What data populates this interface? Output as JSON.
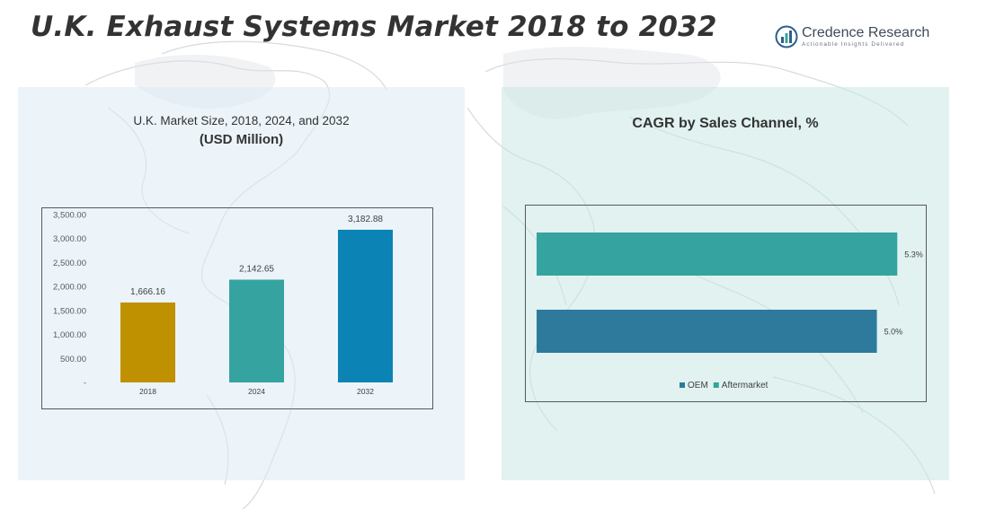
{
  "page": {
    "title": "U.K. Exhaust Systems Market 2018 to 2032"
  },
  "brand": {
    "name": "Credence Research",
    "tagline": "Actionable Insights Delivered"
  },
  "left_panel": {
    "title_line1": "U.K. Market Size, 2018, 2024, and 2032",
    "title_line2": "(USD Million)"
  },
  "right_panel": {
    "title": "CAGR by Sales Channel, %"
  },
  "colors": {
    "bar_2018": "#bf9000",
    "bar_2024": "#35a39f",
    "bar_2032": "#0b83b4",
    "oem": "#2e7a9c",
    "aftermarket": "#35a39f"
  },
  "chart_data": [
    {
      "type": "bar",
      "categories": [
        "2018",
        "2024",
        "2032"
      ],
      "values": [
        1666.16,
        2142.65,
        3182.88
      ],
      "value_labels": [
        "1,666.16",
        "2,142.65",
        "3,182.88"
      ],
      "ylim": [
        0,
        3500
      ],
      "yticks": [
        0,
        500,
        1000,
        1500,
        2000,
        2500,
        3000,
        3500
      ],
      "ytick_labels": [
        "-",
        "500.00",
        "1,000.00",
        "1,500.00",
        "2,000.00",
        "2,500.00",
        "3,000.00",
        "3,500.00"
      ],
      "colors": [
        "#bf9000",
        "#35a39f",
        "#0b83b4"
      ],
      "grid": false
    },
    {
      "type": "bar",
      "orientation": "horizontal",
      "series": [
        {
          "name": "Aftermarket",
          "values": [
            5.3
          ],
          "label": "5.3%",
          "color": "#35a39f"
        },
        {
          "name": "OEM",
          "values": [
            5.0
          ],
          "label": "5.0%",
          "color": "#2e7a9c"
        }
      ],
      "legend": [
        "OEM",
        "Aftermarket"
      ],
      "legend_placement": "bottom",
      "xlim": [
        0,
        5.6
      ],
      "grid": false
    }
  ]
}
